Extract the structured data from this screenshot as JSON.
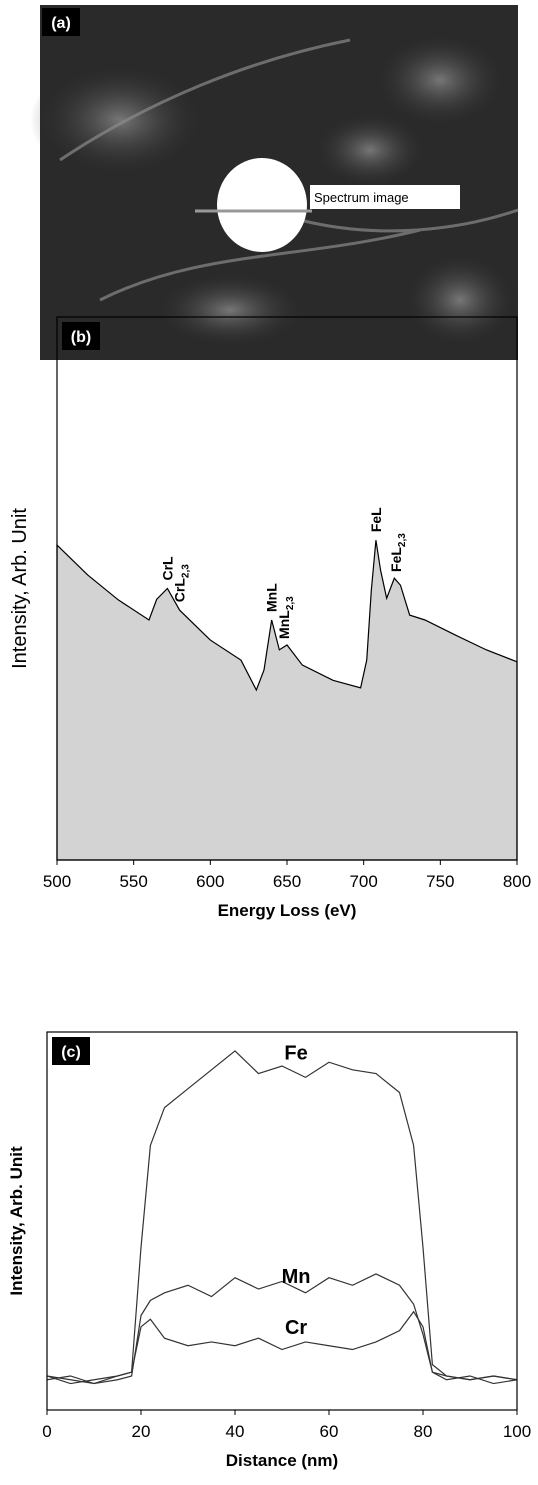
{
  "panel_a": {
    "label": "(a)",
    "annotation": "Spectrum image"
  },
  "chart_data": [
    {
      "type": "area",
      "panel_label": "(b)",
      "xlabel": "Energy Loss (eV)",
      "ylabel": "Intensity, Arb. Unit",
      "color": "#d3d3d3",
      "x": [
        500,
        520,
        540,
        560,
        565,
        572,
        580,
        600,
        620,
        630,
        635,
        640,
        645,
        650,
        660,
        680,
        698,
        702,
        705,
        708,
        711,
        715,
        720,
        724,
        730,
        740,
        760,
        780,
        800
      ],
      "values": [
        58,
        52.5,
        47.9,
        44.2,
        48,
        50,
        46,
        40.5,
        36.8,
        31.3,
        35,
        44.2,
        38.7,
        39.6,
        35.9,
        33.1,
        31.7,
        36.8,
        49.7,
        58.9,
        53.4,
        48.2,
        51.9,
        50.6,
        45.1,
        44.2,
        41.4,
        38.7,
        36.5
      ],
      "xlim": [
        500,
        800
      ],
      "xticks": [
        500,
        550,
        600,
        650,
        700,
        750,
        800
      ],
      "ylim": [
        0,
        100
      ],
      "annotations": [
        {
          "x": 572,
          "text": "CrL"
        },
        {
          "x": 580,
          "text": "CrL",
          "sub": "2,3"
        },
        {
          "x": 640,
          "text": "MnL"
        },
        {
          "x": 648,
          "text": "MnL",
          "sub": "2,3"
        },
        {
          "x": 708,
          "text": "FeL"
        },
        {
          "x": 721,
          "text": "FeL",
          "sub": "2,3"
        }
      ]
    },
    {
      "type": "line",
      "panel_label": "(c)",
      "xlabel": "Distance (nm)",
      "ylabel": "Intensity, Arb. Unit",
      "x": [
        0,
        5,
        10,
        15,
        18,
        20,
        22,
        25,
        30,
        35,
        40,
        45,
        50,
        55,
        60,
        65,
        70,
        75,
        78,
        80,
        82,
        85,
        90,
        95,
        100
      ],
      "series": [
        {
          "name": "Fe",
          "color": "#333333",
          "values": [
            9,
            8,
            7,
            9,
            10,
            43,
            70,
            80,
            85,
            90,
            95,
            89,
            91,
            88,
            92,
            90,
            89,
            84,
            70,
            43,
            12,
            9,
            8,
            9,
            8
          ]
        },
        {
          "name": "Mn",
          "color": "#333333",
          "values": [
            8,
            9,
            7,
            8,
            9,
            25,
            29,
            31,
            33,
            30,
            35,
            32,
            34,
            31,
            35,
            33,
            36,
            33,
            28,
            20,
            10,
            8,
            9,
            7,
            8
          ]
        },
        {
          "name": "Cr",
          "color": "#333333",
          "values": [
            9,
            7,
            8,
            9,
            10,
            22,
            24,
            19,
            17,
            18,
            17,
            19,
            16,
            18,
            17,
            16,
            18,
            21,
            26,
            22,
            10,
            9,
            8,
            9,
            8
          ]
        }
      ],
      "xlim": [
        0,
        100
      ],
      "xticks": [
        0,
        20,
        40,
        60,
        80,
        100
      ],
      "ylim": [
        0,
        100
      ]
    }
  ]
}
